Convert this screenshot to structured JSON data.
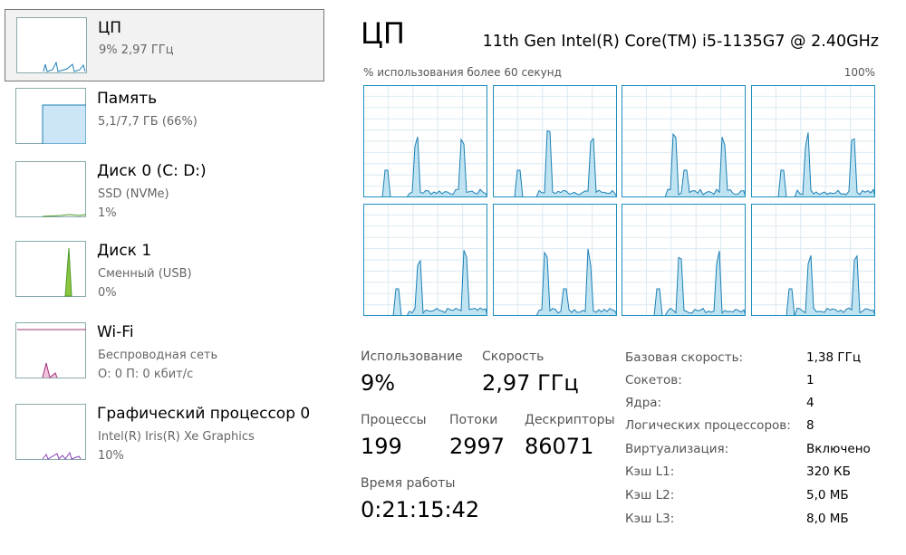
{
  "sidebar": [
    {
      "title": "ЦП",
      "lines": [
        "9%  2,97 ГГц"
      ]
    },
    {
      "title": "Память",
      "lines": [
        "5,1/7,7 ГБ (66%)"
      ]
    },
    {
      "title": "Диск 0 (C: D:)",
      "lines": [
        "SSD (NVMe)",
        "1%"
      ]
    },
    {
      "title": "Диск 1",
      "lines": [
        "Сменный (USB)",
        "0%"
      ]
    },
    {
      "title": "Wi-Fi",
      "lines": [
        "Беспроводная сеть",
        "О: 0 П: 0 кбит/с"
      ]
    },
    {
      "title": "Графический процессор 0",
      "lines": [
        "Intel(R) Iris(R) Xe Graphics",
        "10%"
      ]
    }
  ],
  "header": {
    "title": "ЦП",
    "model": "11th Gen Intel(R) Core(TM) i5-1135G7 @ 2.40GHz",
    "graph_label": "% использования более 60 секунд",
    "graph_max": "100%"
  },
  "stats": {
    "usage": {
      "label": "Использование",
      "value": "9%"
    },
    "speed": {
      "label": "Скорость",
      "value": "2,97 ГГц"
    },
    "processes": {
      "label": "Процессы",
      "value": "199"
    },
    "threads": {
      "label": "Потоки",
      "value": "2997"
    },
    "handles": {
      "label": "Дескрипторы",
      "value": "86071"
    },
    "uptime": {
      "label": "Время работы",
      "value": "0:21:15:42"
    }
  },
  "specs": [
    [
      "Базовая скорость:",
      "1,38 ГГц"
    ],
    [
      "Сокетов:",
      "1"
    ],
    [
      "Ядра:",
      "4"
    ],
    [
      "Логических процессоров:",
      "8"
    ],
    [
      "Виртуализация:",
      "Включено"
    ],
    [
      "Кэш L1:",
      "320 КБ"
    ],
    [
      "Кэш L2:",
      "5,0 МБ"
    ],
    [
      "Кэш L3:",
      "8,0 МБ"
    ]
  ]
}
